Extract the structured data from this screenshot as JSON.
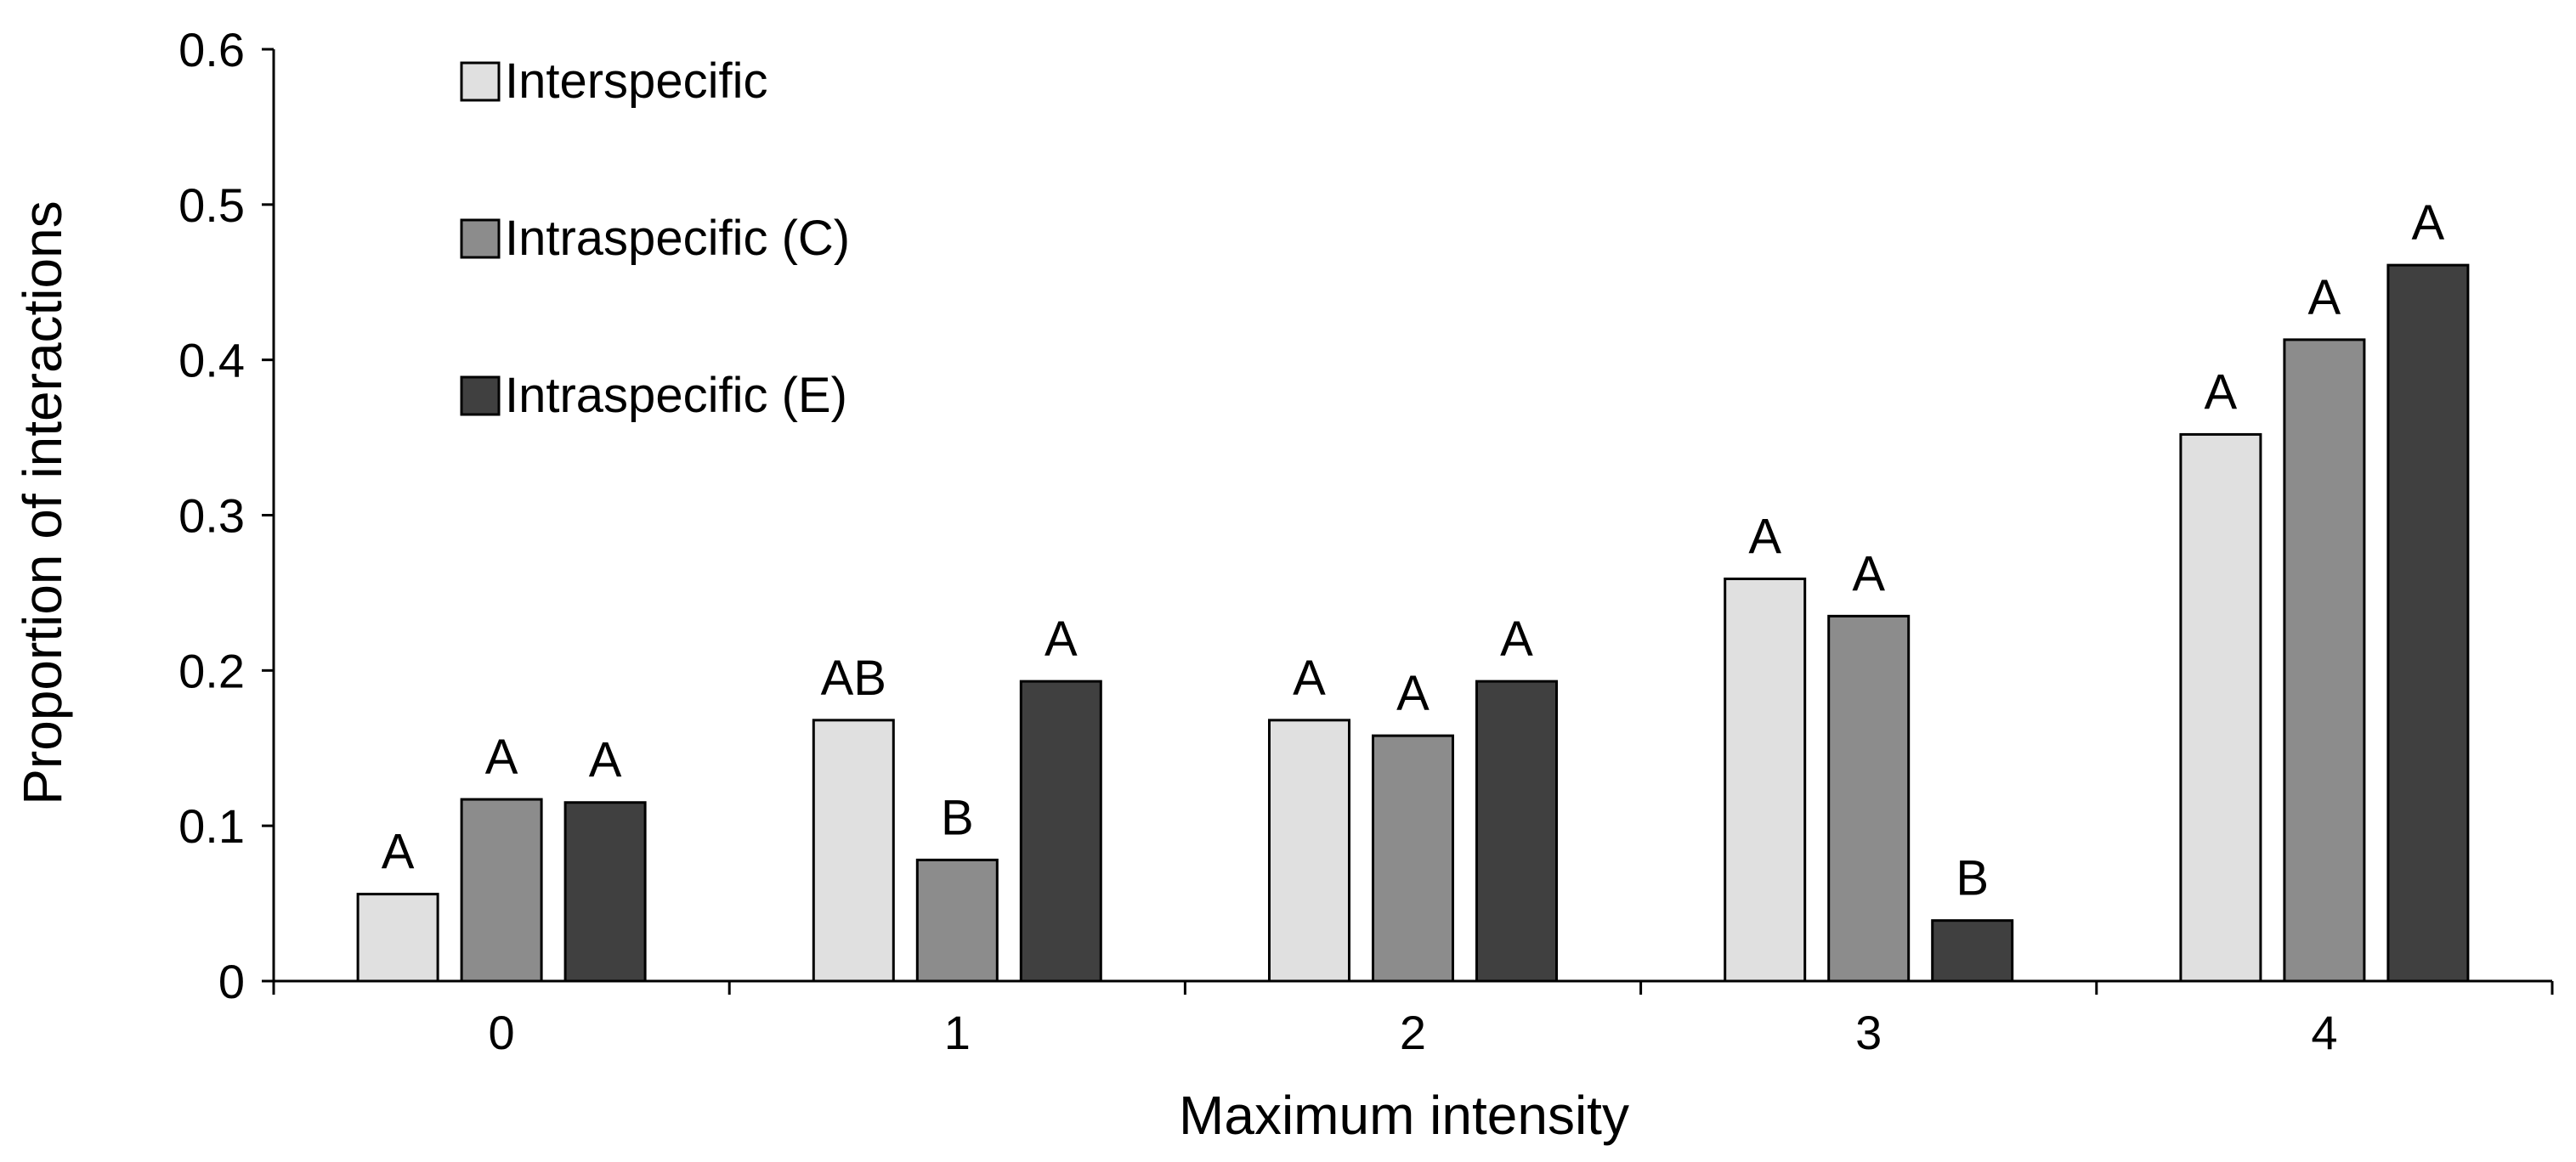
{
  "chart_data": {
    "type": "bar",
    "title": "",
    "xlabel": "Maximum intensity",
    "ylabel": "Proportion of interactions",
    "categories": [
      "0",
      "1",
      "2",
      "3",
      "4"
    ],
    "ylim": [
      0,
      0.6
    ],
    "yticks": [
      0,
      0.1,
      0.2,
      0.3,
      0.4,
      0.5,
      0.6
    ],
    "ytick_labels": [
      "0",
      "0.1",
      "0.2",
      "0.3",
      "0.4",
      "0.5",
      "0.6"
    ],
    "grid": false,
    "legend_position": "top-left",
    "series": [
      {
        "name": "Interspecific",
        "color": "#e0e0e0",
        "values": [
          0.056,
          0.168,
          0.168,
          0.259,
          0.352
        ],
        "labels": [
          "A",
          "AB",
          "A",
          "A",
          "A"
        ]
      },
      {
        "name": "Intraspecific (C)",
        "color": "#8c8c8c",
        "values": [
          0.117,
          0.078,
          0.158,
          0.235,
          0.413
        ],
        "labels": [
          "A",
          "B",
          "A",
          "A",
          "A"
        ]
      },
      {
        "name": "Intraspecific (E)",
        "color": "#404040",
        "values": [
          0.115,
          0.193,
          0.193,
          0.039,
          0.461
        ],
        "labels": [
          "A",
          "A",
          "A",
          "B",
          "A"
        ]
      }
    ]
  }
}
